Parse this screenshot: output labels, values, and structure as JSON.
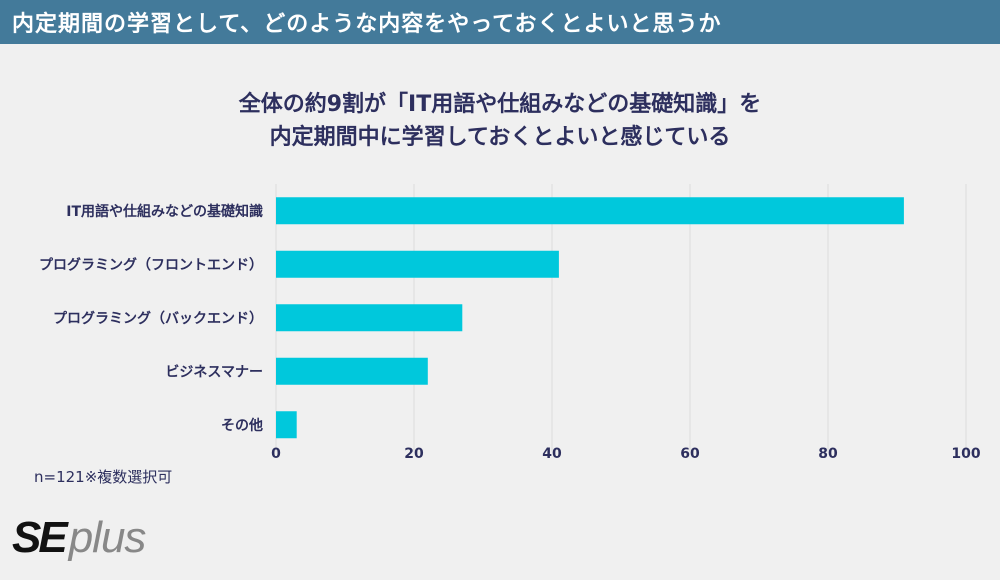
{
  "header": {
    "title": "内定期間の学習として、どのような内容をやっておくとよいと思うか"
  },
  "chart_data": {
    "type": "bar",
    "orientation": "horizontal",
    "title_lines": [
      "全体の約9割が「IT用語や仕組みなどの基礎知識」を",
      "内定期間中に学習しておくとよいと感じている"
    ],
    "categories": [
      "IT用語や仕組みなどの基礎知識",
      "プログラミング（フロントエンド）",
      "プログラミング（バックエンド）",
      "ビジネスマナー",
      "その他"
    ],
    "values": [
      91,
      41,
      27,
      22,
      3
    ],
    "xlim": [
      0,
      100
    ],
    "xticks": [
      0,
      20,
      40,
      60,
      80,
      100
    ],
    "bar_color": "#00c8dc",
    "grid": true
  },
  "note": "n=121※複数選択可",
  "logo": {
    "se": "SE",
    "plus": "plus"
  },
  "colors": {
    "header_bg": "#437a9a",
    "text": "#2d2f5e",
    "background": "#f0f0f0"
  }
}
